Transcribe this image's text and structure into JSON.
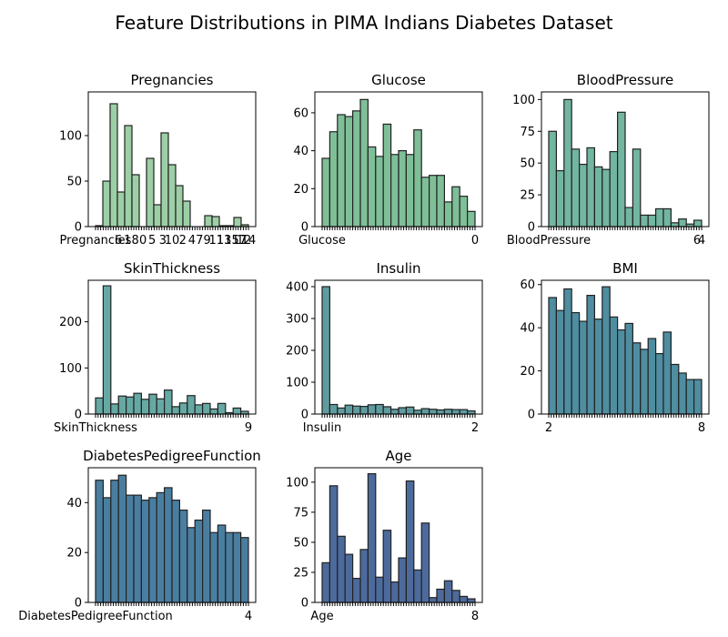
{
  "figure": {
    "title": "Feature Distributions in PIMA Indians Diabetes Dataset"
  },
  "chart_data": [
    {
      "type": "bar",
      "title": "Pregnancies",
      "color": "#9dcfa6",
      "ylim": [
        0,
        148
      ],
      "yticks": [
        0,
        50,
        100
      ],
      "values": [
        1,
        50,
        135,
        38,
        111,
        57,
        0,
        75,
        24,
        103,
        68,
        45,
        28,
        0,
        0,
        12,
        11,
        1,
        1,
        10,
        2
      ],
      "xtick_labels": [
        "Pregnancies",
        "6",
        "1",
        "8",
        "0",
        "5",
        "3",
        "10",
        "2",
        "4",
        "7",
        "9",
        "11",
        "13",
        "15",
        "17",
        "12",
        "14"
      ],
      "xlabel": "",
      "ylabel": ""
    },
    {
      "type": "bar",
      "title": "Glucose",
      "color": "#7fbf98",
      "ylim": [
        0,
        71
      ],
      "yticks": [
        0,
        20,
        40,
        60
      ],
      "values": [
        36,
        50,
        59,
        58,
        61,
        67,
        42,
        37,
        54,
        38,
        40,
        38,
        51,
        26,
        27,
        27,
        13,
        21,
        16,
        8
      ],
      "xtick_labels": [
        "Glucose",
        "0"
      ],
      "xlabel": "",
      "ylabel": ""
    },
    {
      "type": "bar",
      "title": "BloodPressure",
      "color": "#72b5a1",
      "ylim": [
        0,
        106
      ],
      "yticks": [
        0,
        25,
        50,
        75,
        100
      ],
      "values": [
        75,
        44,
        100,
        61,
        49,
        62,
        47,
        45,
        59,
        90,
        15,
        61,
        9,
        9,
        14,
        14,
        3,
        6,
        2,
        5
      ],
      "xtick_labels": [
        "BloodPressure",
        "6",
        "4"
      ],
      "xlabel": "",
      "ylabel": ""
    },
    {
      "type": "bar",
      "title": "SkinThickness",
      "color": "#66a8a3",
      "ylim": [
        0,
        290
      ],
      "yticks": [
        0,
        100,
        200
      ],
      "values": [
        35,
        278,
        22,
        39,
        37,
        45,
        32,
        43,
        33,
        52,
        16,
        24,
        40,
        20,
        23,
        11,
        23,
        3,
        13,
        6
      ],
      "xtick_labels": [
        "SkinThickness",
        "9"
      ],
      "xlabel": "",
      "ylabel": ""
    },
    {
      "type": "bar",
      "title": "Insulin",
      "color": "#5e9ca0",
      "ylim": [
        0,
        420
      ],
      "yticks": [
        0,
        100,
        200,
        300,
        400
      ],
      "values": [
        400,
        30,
        19,
        28,
        25,
        24,
        29,
        30,
        23,
        15,
        20,
        22,
        12,
        17,
        15,
        13,
        15,
        14,
        14,
        10
      ],
      "xtick_labels": [
        "Insulin",
        "2"
      ],
      "xlabel": "",
      "ylabel": ""
    },
    {
      "type": "bar",
      "title": "BMI",
      "color": "#4f8da0",
      "ylim": [
        0,
        62
      ],
      "yticks": [
        0,
        20,
        40,
        60
      ],
      "values": [
        54,
        48,
        58,
        47,
        43,
        55,
        44,
        59,
        45,
        39,
        42,
        33,
        30,
        35,
        28,
        38,
        23,
        19,
        16,
        16
      ],
      "xtick_labels": [
        "2",
        "8"
      ],
      "xlabel": "",
      "ylabel": ""
    },
    {
      "type": "bar",
      "title": "DiabetesPedigreeFunction",
      "color": "#4a7ea0",
      "ylim": [
        0,
        54
      ],
      "yticks": [
        0,
        20,
        40
      ],
      "values": [
        49,
        42,
        49,
        51,
        43,
        43,
        41,
        42,
        44,
        46,
        41,
        37,
        30,
        33,
        37,
        28,
        31,
        28,
        28,
        26
      ],
      "xtick_labels": [
        "DiabetesPedigreeFunction",
        "4"
      ],
      "xlabel": "",
      "ylabel": ""
    },
    {
      "type": "bar",
      "title": "Age",
      "color": "#4d6a9c",
      "ylim": [
        0,
        112
      ],
      "yticks": [
        0,
        25,
        50,
        75,
        100
      ],
      "values": [
        33,
        97,
        55,
        40,
        20,
        44,
        107,
        21,
        60,
        17,
        37,
        101,
        27,
        66,
        4,
        11,
        18,
        10,
        5,
        3
      ],
      "xtick_labels": [
        "Age",
        "8"
      ],
      "xlabel": "",
      "ylabel": ""
    }
  ]
}
